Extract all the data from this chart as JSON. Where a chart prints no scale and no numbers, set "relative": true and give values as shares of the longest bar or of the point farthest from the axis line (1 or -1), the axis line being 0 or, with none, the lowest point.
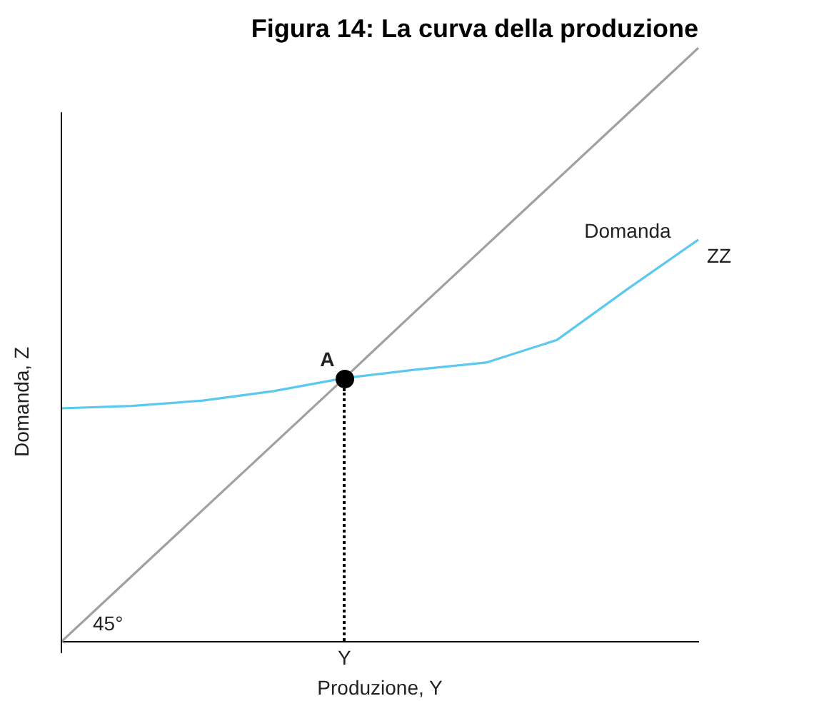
{
  "chart_data": {
    "type": "line",
    "title": "Figura 14: La curva della produzione",
    "xlabel": "Produzione, Y",
    "ylabel": "Domanda, Z",
    "relative": true,
    "grid": false,
    "legend": false,
    "categories": [
      null,
      null,
      null,
      null,
      null,
      null,
      null,
      null,
      null,
      null
    ],
    "series": [
      {
        "color": "#a0a0a0",
        "values": [
          0,
          0.111,
          0.222,
          0.333,
          0.444,
          0.556,
          0.667,
          0.778,
          0.889,
          1
        ]
      },
      {
        "name": "ZZ",
        "color": "#5bc8f0",
        "values": [
          0.393,
          0.397,
          0.406,
          0.422,
          0.444,
          0.458,
          0.47,
          0.508,
          0.594,
          0.677
        ]
      }
    ],
    "annotations": [
      "Domanda",
      "45°",
      "A",
      "Y"
    ]
  }
}
